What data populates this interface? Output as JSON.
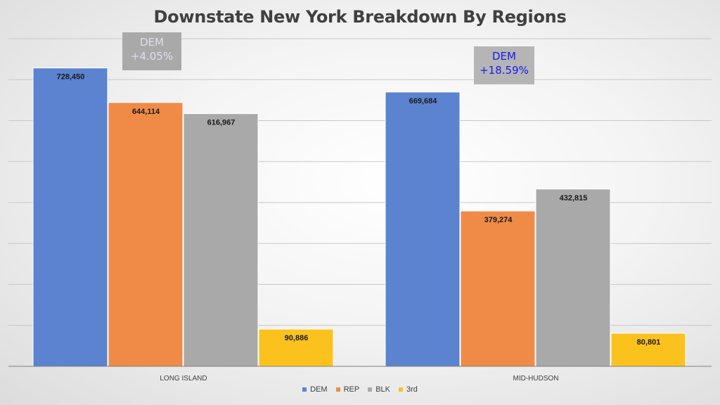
{
  "chart_data": {
    "type": "bar",
    "title": "Downstate New York Breakdown By Regions",
    "categories": [
      "LONG ISLAND",
      "MID-HUDSON"
    ],
    "series": [
      {
        "name": "DEM",
        "color": "#5b83cf",
        "values": [
          728450,
          669684
        ],
        "labels": [
          "728,450",
          "669,684"
        ]
      },
      {
        "name": "REP",
        "color": "#ef8b47",
        "values": [
          644114,
          379274
        ],
        "labels": [
          "644,114",
          "379,274"
        ]
      },
      {
        "name": "BLK",
        "color": "#a9a9a9",
        "values": [
          616967,
          432815
        ],
        "labels": [
          "616,967",
          "432,815"
        ]
      },
      {
        "name": "3rd",
        "color": "#fbc21e",
        "values": [
          90886,
          80801
        ],
        "labels": [
          "90,886",
          "80,801"
        ]
      }
    ],
    "ylim": [
      0,
      800000
    ],
    "grid": true,
    "legend_position": "bottom",
    "annotations": [
      {
        "category": "LONG ISLAND",
        "line1": "DEM",
        "line2": "+4.05%",
        "color": "#e2dcf0"
      },
      {
        "category": "MID-HUDSON",
        "line1": "DEM",
        "line2": "+18.59%",
        "color": "#1a1aee"
      }
    ]
  }
}
